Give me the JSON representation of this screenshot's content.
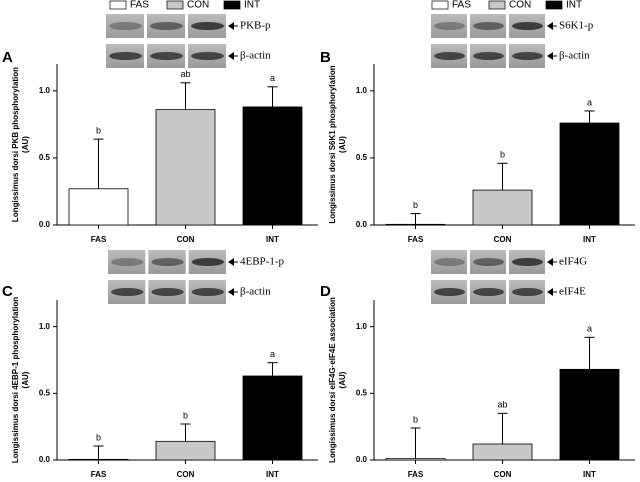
{
  "legend": {
    "colors": [
      "#ffffff",
      "#c8c8c8",
      "#000000"
    ]
  },
  "chart_data": [
    {
      "type": "bar",
      "panel": "A",
      "blot_labels": [
        "PKB-p",
        "β-actin"
      ],
      "ylabel": [
        "Longissimus dorsi PKB phosphorylation",
        "(AU)"
      ],
      "categories": [
        "FAS",
        "CON",
        "INT"
      ],
      "values": [
        0.27,
        0.86,
        0.88
      ],
      "errors": [
        0.37,
        0.2,
        0.15
      ],
      "letters": [
        "b",
        "ab",
        "a"
      ],
      "colors": [
        "#ffffff",
        "#c8c8c8",
        "#000000"
      ],
      "ylim": [
        0,
        1.2
      ],
      "yticks": [
        {
          "value": 0,
          "label": "0.0"
        },
        {
          "value": 0.5,
          "label": "0.5"
        },
        {
          "value": 1,
          "label": "1.0"
        }
      ]
    },
    {
      "type": "bar",
      "panel": "B",
      "blot_labels": [
        "S6K1-p",
        "β-actin"
      ],
      "ylabel": [
        "Longissimus dorsi S6K1 phosphorylation",
        "(AU)"
      ],
      "categories": [
        "FAS",
        "CON",
        "INT"
      ],
      "values": [
        0.005,
        0.26,
        0.76
      ],
      "errors": [
        0.08,
        0.2,
        0.09
      ],
      "letters": [
        "b",
        "b",
        "a"
      ],
      "colors": [
        "#ffffff",
        "#c8c8c8",
        "#000000"
      ],
      "ylim": [
        0,
        1.2
      ],
      "yticks": [
        {
          "value": 0,
          "label": "0.0"
        },
        {
          "value": 0.5,
          "label": "0.5"
        },
        {
          "value": 1,
          "label": "1.0"
        }
      ]
    },
    {
      "type": "bar",
      "panel": "C",
      "blot_labels": [
        "4EBP-1-p",
        "β-actin"
      ],
      "ylabel": [
        "Longissimus dorsi 4EBP-1 phosphorylation",
        "(AU)"
      ],
      "categories": [
        "FAS",
        "CON",
        "INT"
      ],
      "values": [
        0.005,
        0.14,
        0.63
      ],
      "errors": [
        0.1,
        0.13,
        0.1
      ],
      "letters": [
        "b",
        "b",
        "a"
      ],
      "colors": [
        "#ffffff",
        "#c8c8c8",
        "#000000"
      ],
      "ylim": [
        0,
        1.2
      ],
      "yticks": [
        {
          "value": 0,
          "label": "0.0"
        },
        {
          "value": 0.5,
          "label": "0.5"
        },
        {
          "value": 1,
          "label": "1.0"
        }
      ]
    },
    {
      "type": "bar",
      "panel": "D",
      "blot_labels": [
        "eIF4G",
        "eIF4E"
      ],
      "ylabel": [
        "Longissimus dorsi eIF4G·eIF4E association",
        "(AU)"
      ],
      "categories": [
        "FAS",
        "CON",
        "INT"
      ],
      "values": [
        0.01,
        0.12,
        0.68
      ],
      "errors": [
        0.23,
        0.23,
        0.24
      ],
      "letters": [
        "b",
        "ab",
        "a"
      ],
      "colors": [
        "#ffffff",
        "#c8c8c8",
        "#000000"
      ],
      "ylim": [
        0,
        1.2
      ],
      "yticks": [
        {
          "value": 0,
          "label": "0.0"
        },
        {
          "value": 0.5,
          "label": "0.5"
        },
        {
          "value": 1,
          "label": "1.0"
        }
      ]
    }
  ]
}
